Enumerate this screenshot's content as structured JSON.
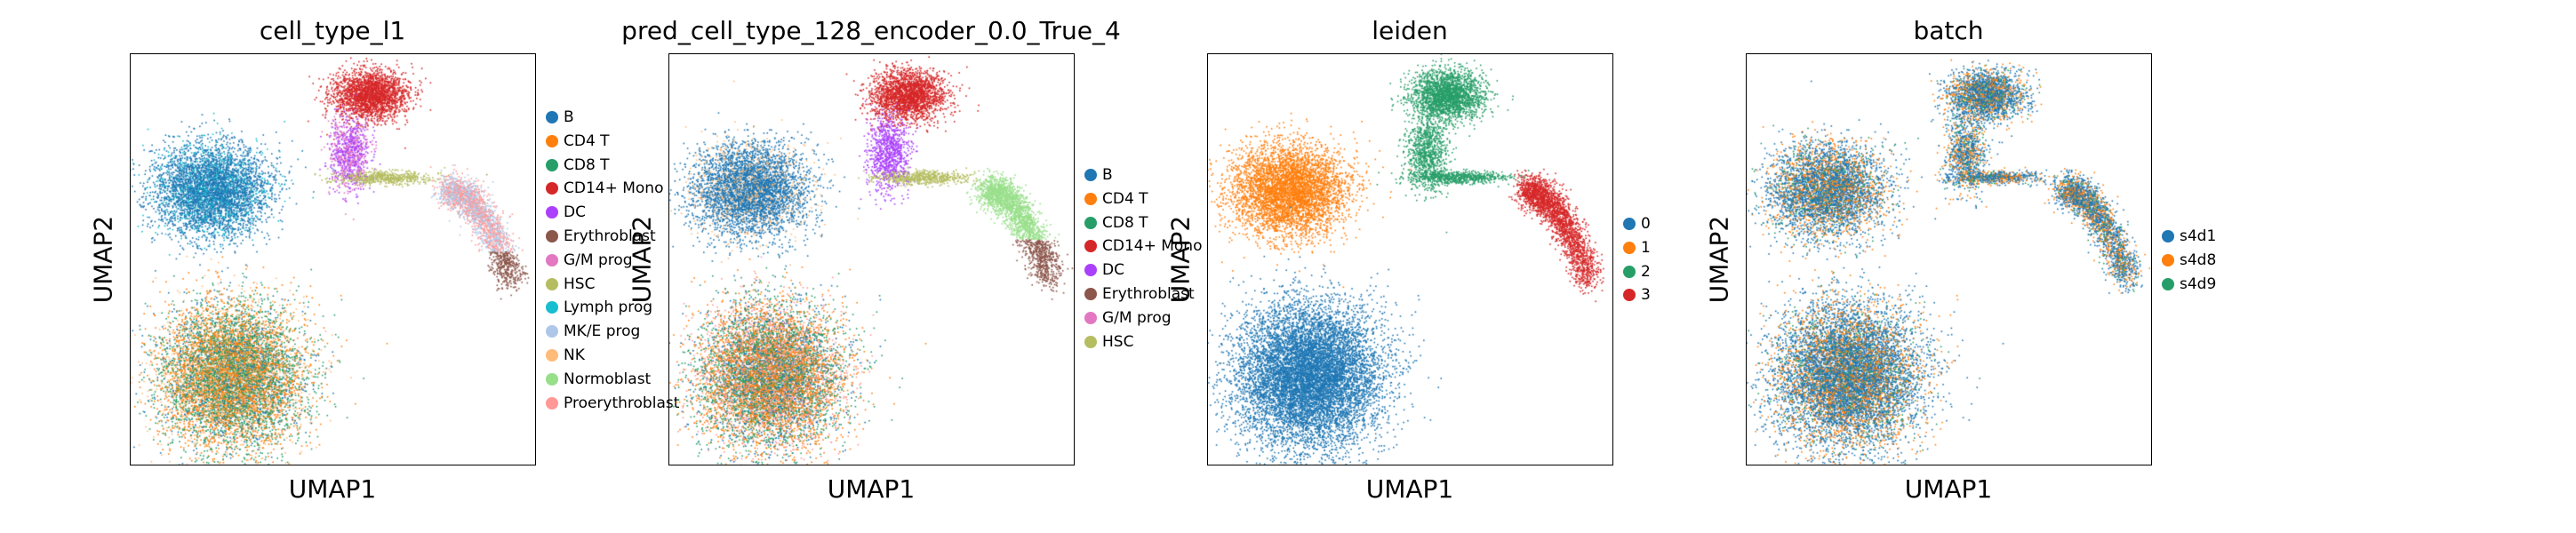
{
  "chart_data": [
    {
      "type": "scatter",
      "title": "cell_type_l1",
      "xlabel": "UMAP1",
      "ylabel": "UMAP2",
      "grid": false,
      "legend_position": "right",
      "series": [
        {
          "name": "B",
          "color": "#1f77b4"
        },
        {
          "name": "CD4 T",
          "color": "#ff7f0e"
        },
        {
          "name": "CD8 T",
          "color": "#279e68"
        },
        {
          "name": "CD14+ Mono",
          "color": "#d62728"
        },
        {
          "name": "DC",
          "color": "#aa40fc"
        },
        {
          "name": "Erythroblast",
          "color": "#8c564b"
        },
        {
          "name": "G/M prog",
          "color": "#e377c2"
        },
        {
          "name": "HSC",
          "color": "#b5bd61"
        },
        {
          "name": "Lymph prog",
          "color": "#17becf"
        },
        {
          "name": "MK/E prog",
          "color": "#aec7e8"
        },
        {
          "name": "NK",
          "color": "#ffbb78"
        },
        {
          "name": "Normoblast",
          "color": "#98df8a"
        },
        {
          "name": "Proerythroblast",
          "color": "#ff9896"
        }
      ]
    },
    {
      "type": "scatter",
      "title": "pred_cell_type_128_encoder_0.0_True_4",
      "xlabel": "UMAP1",
      "ylabel": "UMAP2",
      "grid": false,
      "legend_position": "right",
      "series": [
        {
          "name": "B",
          "color": "#1f77b4"
        },
        {
          "name": "CD4 T",
          "color": "#ff7f0e"
        },
        {
          "name": "CD8 T",
          "color": "#279e68"
        },
        {
          "name": "CD14+ Mono",
          "color": "#d62728"
        },
        {
          "name": "DC",
          "color": "#aa40fc"
        },
        {
          "name": "Erythroblast",
          "color": "#8c564b"
        },
        {
          "name": "G/M prog",
          "color": "#e377c2"
        },
        {
          "name": "HSC",
          "color": "#b5bd61"
        }
      ]
    },
    {
      "type": "scatter",
      "title": "leiden",
      "xlabel": "UMAP1",
      "ylabel": "UMAP2",
      "grid": false,
      "legend_position": "right",
      "series": [
        {
          "name": "0",
          "color": "#1f77b4"
        },
        {
          "name": "1",
          "color": "#ff7f0e"
        },
        {
          "name": "2",
          "color": "#279e68"
        },
        {
          "name": "3",
          "color": "#d62728"
        }
      ]
    },
    {
      "type": "scatter",
      "title": "batch",
      "xlabel": "UMAP1",
      "ylabel": "UMAP2",
      "grid": false,
      "legend_position": "right",
      "series": [
        {
          "name": "s4d1",
          "color": "#1f77b4"
        },
        {
          "name": "s4d8",
          "color": "#ff7f0e"
        },
        {
          "name": "s4d9",
          "color": "#279e68"
        }
      ]
    }
  ]
}
